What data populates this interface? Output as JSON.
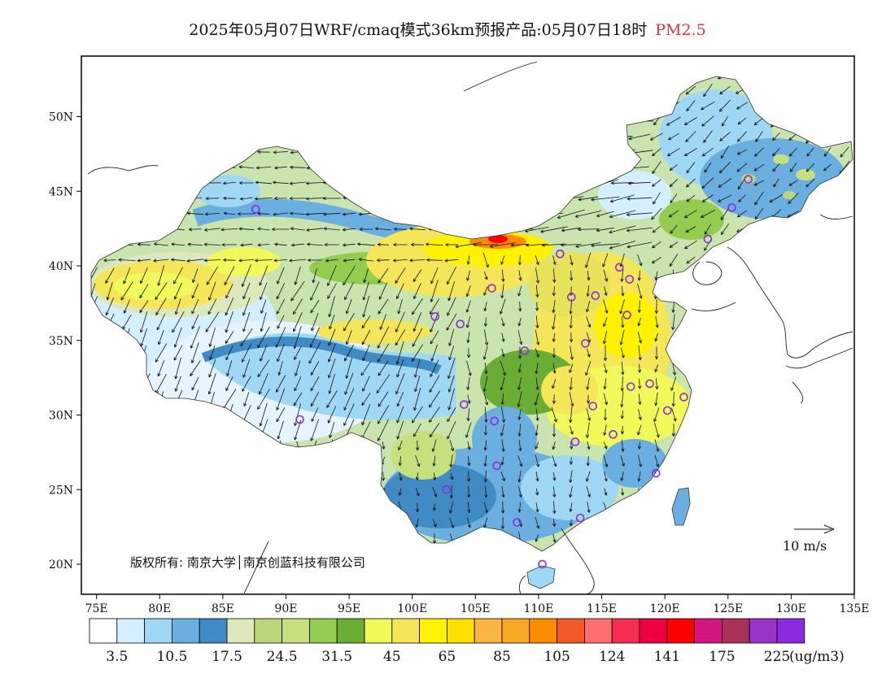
{
  "title": {
    "main": "2025年05月07日WRF/cmaq模式36km预报产品:05月07日18时",
    "species": "PM2.5",
    "species_color": "#e8303a"
  },
  "map": {
    "x_ticks": [
      {
        "lon": 75,
        "label": "75E"
      },
      {
        "lon": 80,
        "label": "80E"
      },
      {
        "lon": 85,
        "label": "85E"
      },
      {
        "lon": 90,
        "label": "90E"
      },
      {
        "lon": 95,
        "label": "95E"
      },
      {
        "lon": 100,
        "label": "100E"
      },
      {
        "lon": 105,
        "label": "105E"
      },
      {
        "lon": 110,
        "label": "110E"
      },
      {
        "lon": 115,
        "label": "115E"
      },
      {
        "lon": 120,
        "label": "120E"
      },
      {
        "lon": 125,
        "label": "125E"
      },
      {
        "lon": 130,
        "label": "130E"
      },
      {
        "lon": 135,
        "label": "135E"
      }
    ],
    "y_ticks": [
      {
        "lat": 20,
        "label": "20N"
      },
      {
        "lat": 25,
        "label": "25N"
      },
      {
        "lat": 30,
        "label": "30N"
      },
      {
        "lat": 35,
        "label": "35N"
      },
      {
        "lat": 40,
        "label": "40N"
      },
      {
        "lat": 45,
        "label": "45N"
      },
      {
        "lat": 50,
        "label": "50N"
      }
    ],
    "copyright": "版权所有: 南京大学│南京创蓝科技有限公司",
    "wind_ref_label": "10 m/s",
    "station_color": "#8a2be2",
    "stations": [
      {
        "lon": 87.6,
        "lat": 43.8
      },
      {
        "lon": 91.1,
        "lat": 29.7
      },
      {
        "lon": 101.8,
        "lat": 36.6
      },
      {
        "lon": 103.8,
        "lat": 36.1
      },
      {
        "lon": 106.3,
        "lat": 38.5
      },
      {
        "lon": 111.7,
        "lat": 40.8
      },
      {
        "lon": 112.6,
        "lat": 37.9
      },
      {
        "lon": 114.5,
        "lat": 38.0
      },
      {
        "lon": 116.4,
        "lat": 39.9
      },
      {
        "lon": 117.2,
        "lat": 39.1
      },
      {
        "lon": 117.0,
        "lat": 36.7
      },
      {
        "lon": 113.7,
        "lat": 34.8
      },
      {
        "lon": 108.9,
        "lat": 34.3
      },
      {
        "lon": 104.1,
        "lat": 30.7
      },
      {
        "lon": 106.5,
        "lat": 29.6
      },
      {
        "lon": 106.7,
        "lat": 26.6
      },
      {
        "lon": 102.7,
        "lat": 25.0
      },
      {
        "lon": 108.3,
        "lat": 22.8
      },
      {
        "lon": 113.3,
        "lat": 23.1
      },
      {
        "lon": 110.3,
        "lat": 20.0
      },
      {
        "lon": 112.9,
        "lat": 28.2
      },
      {
        "lon": 115.9,
        "lat": 28.7
      },
      {
        "lon": 114.3,
        "lat": 30.6
      },
      {
        "lon": 117.3,
        "lat": 31.9
      },
      {
        "lon": 118.8,
        "lat": 32.1
      },
      {
        "lon": 120.2,
        "lat": 30.3
      },
      {
        "lon": 121.5,
        "lat": 31.2
      },
      {
        "lon": 119.3,
        "lat": 26.1
      },
      {
        "lon": 123.4,
        "lat": 41.8
      },
      {
        "lon": 125.3,
        "lat": 43.9
      },
      {
        "lon": 126.6,
        "lat": 45.8
      }
    ]
  },
  "legend": {
    "unit": "(ug/m3)",
    "colors": [
      "#ffffff",
      "#d4efff",
      "#9fd8f5",
      "#6bafe0",
      "#418bc5",
      "#dde9bd",
      "#bbd77c",
      "#c6e07d",
      "#93cc4f",
      "#6aad34",
      "#f0fa5a",
      "#f4e658",
      "#fff200",
      "#ffdf00",
      "#f7b445",
      "#f9a825",
      "#ff8c00",
      "#f05a28",
      "#ff6f6f",
      "#f82d55",
      "#ee0040",
      "#ff0000",
      "#d5157f",
      "#a6325a",
      "#9a34c9",
      "#8a2be2"
    ],
    "labels": [
      {
        "boundary": 1,
        "text": "3.5"
      },
      {
        "boundary": 3,
        "text": "10.5"
      },
      {
        "boundary": 5,
        "text": "17.5"
      },
      {
        "boundary": 7,
        "text": "24.5"
      },
      {
        "boundary": 9,
        "text": "31.5"
      },
      {
        "boundary": 11,
        "text": "45"
      },
      {
        "boundary": 13,
        "text": "65"
      },
      {
        "boundary": 15,
        "text": "85"
      },
      {
        "boundary": 17,
        "text": "105"
      },
      {
        "boundary": 19,
        "text": "124"
      },
      {
        "boundary": 21,
        "text": "141"
      },
      {
        "boundary": 23,
        "text": "175"
      },
      {
        "boundary": 25,
        "text": "225"
      }
    ]
  }
}
